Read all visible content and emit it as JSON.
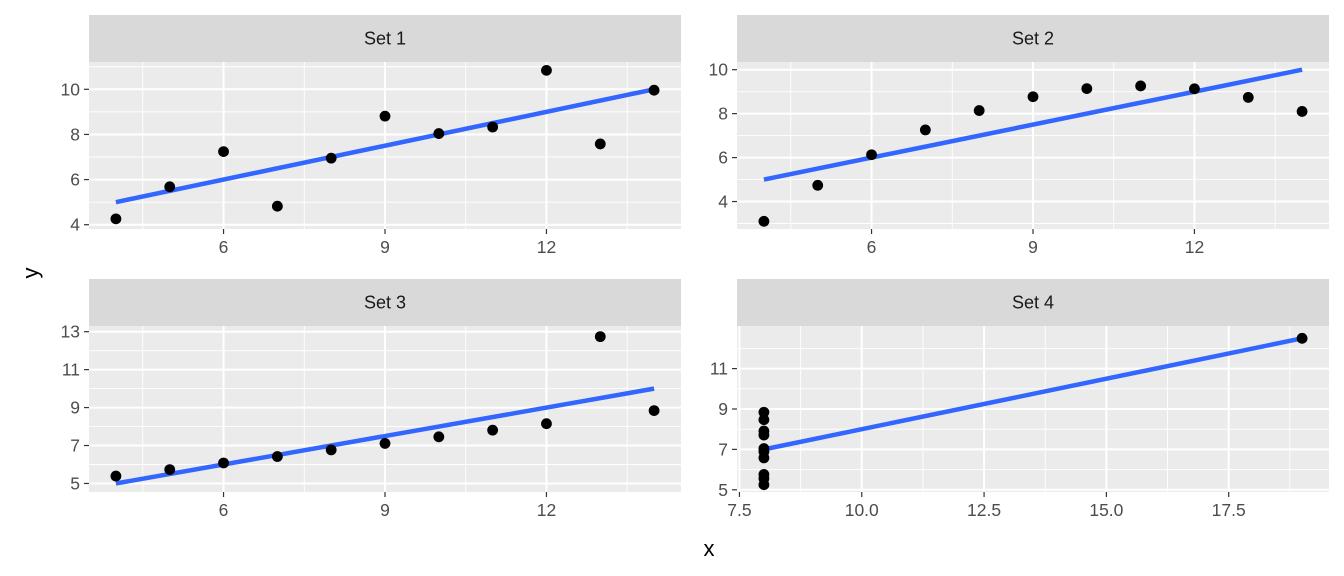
{
  "figure": {
    "x_title": "x",
    "y_title": "y"
  },
  "style": {
    "panel_background": "#ebebeb",
    "strip_background": "#d9d9d9",
    "grid_color": "#ffffff",
    "point_color": "#000000",
    "line_color": "#3366ff",
    "tick_color": "#333333"
  },
  "chart_data": [
    {
      "type": "scatter",
      "title": "Set 1",
      "xlim": [
        3.5,
        14.5
      ],
      "ylim": [
        3.81,
        11.21
      ],
      "x_ticks": [
        6,
        9,
        12
      ],
      "y_ticks": [
        4,
        6,
        8,
        10
      ],
      "x_tick_labels": [
        "6",
        "9",
        "12"
      ],
      "y_tick_labels": [
        "4",
        "6",
        "8",
        "10"
      ],
      "points": [
        [
          10,
          8.04
        ],
        [
          8,
          6.95
        ],
        [
          13,
          7.58
        ],
        [
          9,
          8.81
        ],
        [
          11,
          8.33
        ],
        [
          14,
          9.96
        ],
        [
          6,
          7.24
        ],
        [
          4,
          4.26
        ],
        [
          12,
          10.84
        ],
        [
          7,
          4.82
        ],
        [
          5,
          5.68
        ]
      ],
      "fit": {
        "type": "linear",
        "intercept": 3.0,
        "slope": 0.5,
        "x_range": [
          4,
          14
        ]
      }
    },
    {
      "type": "scatter",
      "title": "Set 2",
      "xlim": [
        3.5,
        14.5
      ],
      "ylim": [
        2.75,
        10.35
      ],
      "x_ticks": [
        6,
        9,
        12
      ],
      "y_ticks": [
        4,
        6,
        8,
        10
      ],
      "x_tick_labels": [
        "6",
        "9",
        "12"
      ],
      "y_tick_labels": [
        "4",
        "6",
        "8",
        "10"
      ],
      "points": [
        [
          10,
          9.14
        ],
        [
          8,
          8.14
        ],
        [
          13,
          8.74
        ],
        [
          9,
          8.77
        ],
        [
          11,
          9.26
        ],
        [
          14,
          8.1
        ],
        [
          6,
          6.13
        ],
        [
          4,
          3.1
        ],
        [
          12,
          9.13
        ],
        [
          7,
          7.26
        ],
        [
          5,
          4.74
        ]
      ],
      "fit": {
        "type": "linear",
        "intercept": 3.0,
        "slope": 0.5,
        "x_range": [
          4,
          14
        ]
      }
    },
    {
      "type": "scatter",
      "title": "Set 3",
      "xlim": [
        3.5,
        14.5
      ],
      "ylim": [
        4.55,
        13.3
      ],
      "x_ticks": [
        6,
        9,
        12
      ],
      "y_ticks": [
        5,
        7,
        9,
        11,
        13
      ],
      "x_tick_labels": [
        "6",
        "9",
        "12"
      ],
      "y_tick_labels": [
        "5",
        "7",
        "9",
        "11",
        "13"
      ],
      "points": [
        [
          10,
          7.46
        ],
        [
          8,
          6.77
        ],
        [
          13,
          12.74
        ],
        [
          9,
          7.11
        ],
        [
          11,
          7.81
        ],
        [
          14,
          8.84
        ],
        [
          6,
          6.08
        ],
        [
          4,
          5.39
        ],
        [
          12,
          8.15
        ],
        [
          7,
          6.42
        ],
        [
          5,
          5.73
        ]
      ],
      "fit": {
        "type": "linear",
        "intercept": 3.0,
        "slope": 0.5,
        "x_range": [
          4,
          14
        ]
      }
    },
    {
      "type": "scatter",
      "title": "Set 4",
      "xlim": [
        7.45,
        19.55
      ],
      "ylim": [
        4.89,
        13.11
      ],
      "x_ticks": [
        7.5,
        10,
        12.5,
        15,
        17.5
      ],
      "y_ticks": [
        5,
        7,
        9,
        11
      ],
      "x_tick_labels": [
        "7.5",
        "10.0",
        "12.5",
        "15.0",
        "17.5"
      ],
      "y_tick_labels": [
        "5",
        "7",
        "9",
        "11"
      ],
      "points": [
        [
          8,
          6.58
        ],
        [
          8,
          5.76
        ],
        [
          8,
          7.71
        ],
        [
          8,
          8.84
        ],
        [
          8,
          8.47
        ],
        [
          8,
          7.04
        ],
        [
          8,
          5.25
        ],
        [
          19,
          12.5
        ],
        [
          8,
          5.56
        ],
        [
          8,
          7.91
        ],
        [
          8,
          6.89
        ]
      ],
      "fit": {
        "type": "linear",
        "intercept": 3.0,
        "slope": 0.5,
        "x_range": [
          8,
          19
        ]
      }
    }
  ]
}
